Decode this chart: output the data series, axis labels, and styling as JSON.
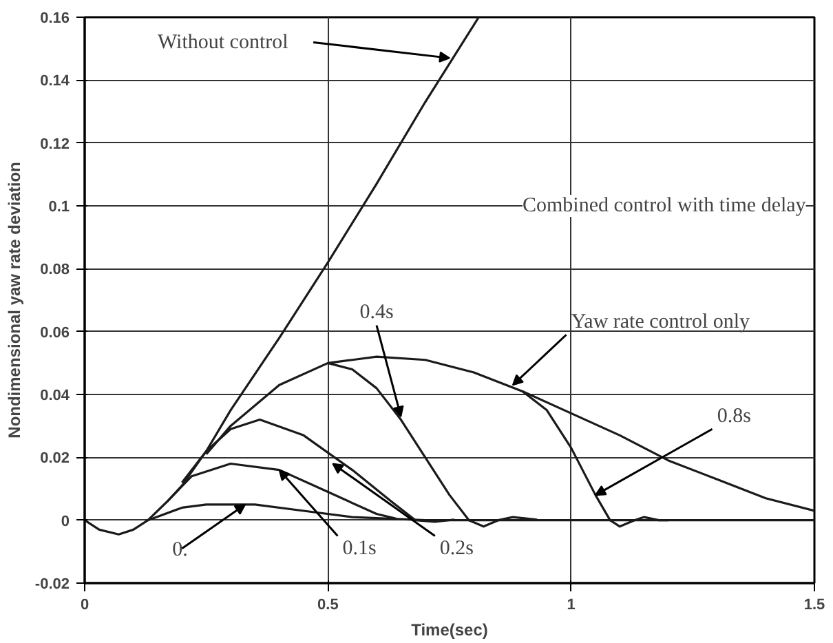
{
  "chart_data": {
    "type": "line",
    "xlabel": "Time(sec)",
    "ylabel": "Nondimensional yaw rate deviation",
    "xlim": [
      0,
      1.5
    ],
    "ylim": [
      -0.02,
      0.16
    ],
    "xticks": [
      0,
      0.5,
      1,
      1.5
    ],
    "yticks": [
      -0.02,
      0,
      0.02,
      0.04,
      0.06,
      0.08,
      0.1,
      0.12,
      0.14,
      0.16
    ],
    "grid": true,
    "marker": "none",
    "line_style": "solid",
    "series": [
      {
        "color": "#1a1a1a",
        "x": [
          0,
          0.03,
          0.07,
          0.1,
          0.13,
          0.17,
          0.2,
          0.25,
          0.3,
          0.4,
          0.5,
          0.6,
          0.7,
          0.81
        ],
        "values": [
          0,
          -0.003,
          -0.0045,
          -0.003,
          0,
          0.006,
          0.011,
          0.022,
          0.035,
          0.058,
          0.082,
          0.107,
          0.133,
          0.16
        ]
      },
      {
        "color": "#1a1a1a",
        "x": [
          0.13,
          0.2,
          0.25,
          0.35,
          0.45,
          0.55,
          0.7,
          1.2
        ],
        "values": [
          0,
          0.004,
          0.005,
          0.005,
          0.003,
          0.001,
          0,
          0
        ]
      },
      {
        "color": "#1a1a1a",
        "x": [
          0.17,
          0.22,
          0.3,
          0.4,
          0.5,
          0.6,
          0.64
        ],
        "values": [
          0.006,
          0.014,
          0.018,
          0.016,
          0.009,
          0.002,
          0.0005
        ]
      },
      {
        "color": "#1a1a1a",
        "x": [
          0.2,
          0.25,
          0.3,
          0.36,
          0.45,
          0.55,
          0.63,
          0.68,
          0.72,
          0.76
        ],
        "values": [
          0.012,
          0.022,
          0.029,
          0.032,
          0.027,
          0.016,
          0.006,
          0,
          -0.0005,
          0.0002
        ]
      },
      {
        "color": "#1a1a1a",
        "x": [
          0.25,
          0.3,
          0.4,
          0.5,
          0.55,
          0.6,
          0.65,
          0.7,
          0.75,
          0.79,
          0.82,
          0.85,
          0.88,
          0.93
        ],
        "values": [
          0.021,
          0.03,
          0.043,
          0.05,
          0.048,
          0.042,
          0.032,
          0.02,
          0.008,
          0,
          -0.002,
          0,
          0.001,
          0.0002
        ]
      },
      {
        "color": "#1a1a1a",
        "x": [
          0.5,
          0.6,
          0.7,
          0.8,
          0.9,
          1.0,
          1.1,
          1.2,
          1.3,
          1.4,
          1.5
        ],
        "values": [
          0.05,
          0.052,
          0.051,
          0.047,
          0.041,
          0.034,
          0.027,
          0.019,
          0.013,
          0.007,
          0.003
        ]
      },
      {
        "color": "#1a1a1a",
        "x": [
          0.9,
          0.95,
          1.0,
          1.05,
          1.08,
          1.1,
          1.13,
          1.15,
          1.18,
          1.5
        ],
        "values": [
          0.041,
          0.035,
          0.023,
          0.008,
          0,
          -0.002,
          0,
          0.001,
          0,
          0
        ]
      }
    ],
    "annotations": [
      {
        "text": "Without control",
        "x": 0.75,
        "y": 0.147
      },
      {
        "text": "0.4s",
        "x": 0.65,
        "y": 0.033
      },
      {
        "text": "Yaw rate control only",
        "x": 0.88,
        "y": 0.043
      },
      {
        "text": "0.8s",
        "x": 1.05,
        "y": 0.008
      },
      {
        "text": "0.",
        "x": 0.33,
        "y": 0.005
      },
      {
        "text": "0.1s",
        "x": 0.4,
        "y": 0.016
      },
      {
        "text": "0.2s",
        "x": 0.51,
        "y": 0.018
      },
      "Combined control with time delay"
    ]
  }
}
